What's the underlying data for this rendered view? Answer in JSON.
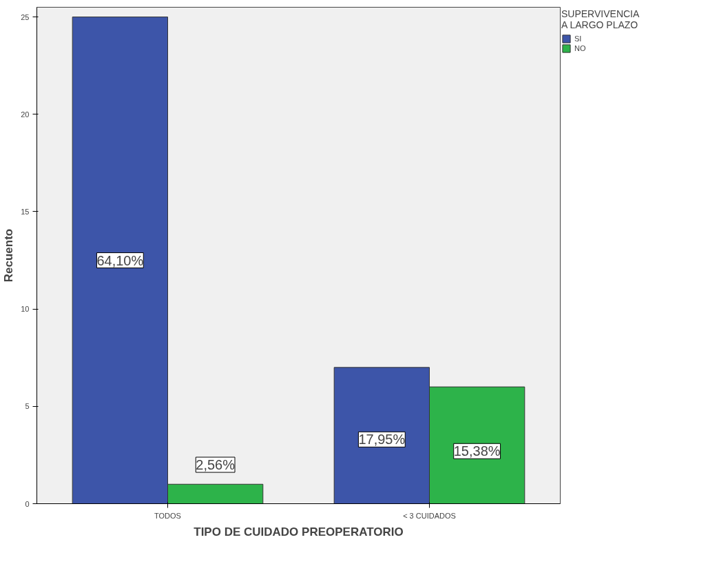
{
  "chart_data": {
    "type": "bar",
    "xlabel": "TIPO DE CUIDADO PREOPERATORIO",
    "ylabel": "Recuento",
    "legend_title": "SUPERVIVENCIA A LARGO PLAZO",
    "categories": [
      "TODOS",
      "< 3 CUIDADOS"
    ],
    "series": [
      {
        "name": "SI",
        "color": "#3d55a9",
        "values": [
          25,
          7
        ]
      },
      {
        "name": "NO",
        "color": "#2db34a",
        "values": [
          1,
          6
        ]
      }
    ],
    "annotations": [
      {
        "text": "64,10%",
        "x": "TODOS",
        "y": 12.5
      },
      {
        "text": "2,56%",
        "x": "TODOS",
        "y": 2
      },
      {
        "text": "17,95%",
        "x": "< 3 CUIDADOS",
        "y": 3.3
      },
      {
        "text": "15,38%",
        "x": "< 3 CUIDADOS",
        "y": 2.7
      }
    ],
    "ylim": [
      0,
      25.5
    ],
    "yticks": [
      0,
      5,
      10,
      15,
      20,
      25
    ],
    "grid": false,
    "legend": "top right"
  }
}
